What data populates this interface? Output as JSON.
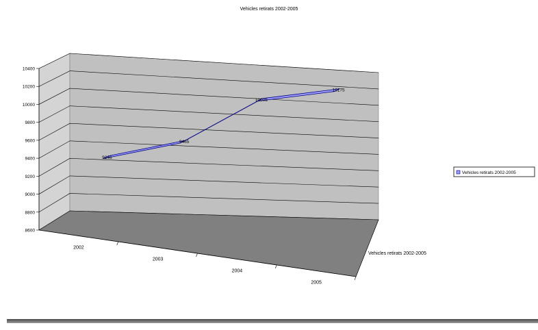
{
  "chart_data": {
    "type": "line",
    "style": "3d",
    "title": "Vehicles retirats 2002-2005",
    "categories": [
      "2002",
      "2003",
      "2004",
      "2005"
    ],
    "series": [
      {
        "name": "Vehicles retirats 2002-2005",
        "values": [
          9246,
          9465,
          10006,
          10175
        ],
        "color": "#9c9cff"
      }
    ],
    "data_labels": [
      "9246",
      "9465",
      "10006",
      "10175"
    ],
    "ylim": [
      8600,
      10400
    ],
    "yticks": [
      "8600",
      "8800",
      "9000",
      "9200",
      "9400",
      "9600",
      "9800",
      "10000",
      "10200",
      "10400"
    ],
    "depth_axis_label": "Vehicles retirats 2002-2005",
    "legend": {
      "position": "right",
      "label": "Vehicles retirats 2002-2005"
    },
    "grid": true,
    "colors": {
      "wall": "#c0c0c0",
      "floor": "#808080",
      "gridline": "#000000",
      "line_edge": "#000080"
    }
  }
}
